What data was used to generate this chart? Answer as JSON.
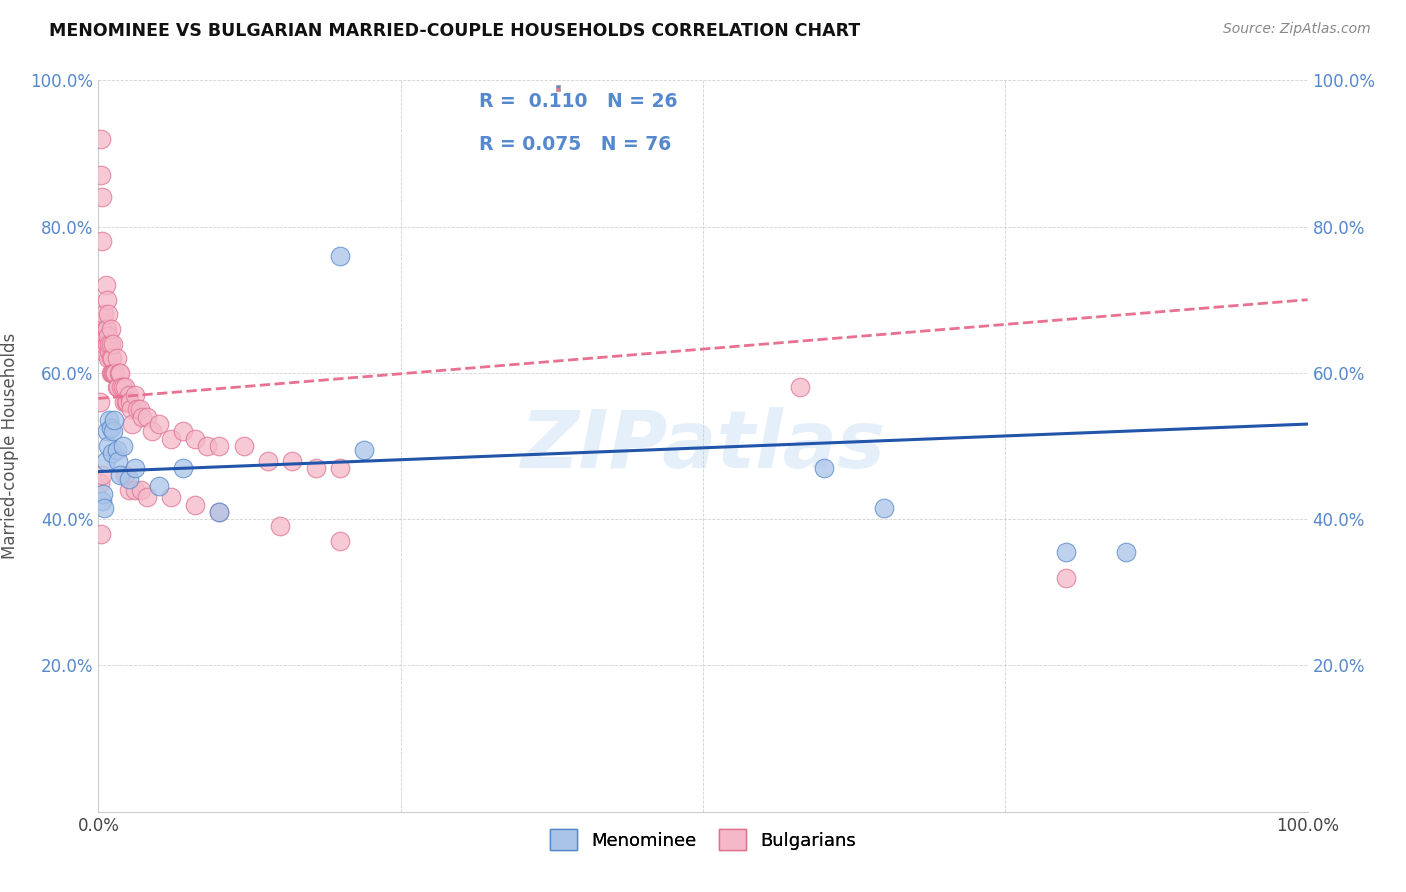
{
  "title": "MENOMINEE VS BULGARIAN MARRIED-COUPLE HOUSEHOLDS CORRELATION CHART",
  "source": "Source: ZipAtlas.com",
  "ylabel": "Married-couple Households",
  "xlim": [
    0,
    1
  ],
  "ylim": [
    0,
    1
  ],
  "xticks": [
    0,
    0.25,
    0.5,
    0.75,
    1.0
  ],
  "yticks": [
    0.0,
    0.2,
    0.4,
    0.6,
    0.8,
    1.0
  ],
  "xticklabels": [
    "0.0%",
    "",
    "",
    "",
    "100.0%"
  ],
  "yticklabels": [
    "",
    "20.0%",
    "40.0%",
    "60.0%",
    "80.0%",
    "100.0%"
  ],
  "menominee_color": "#aac4e8",
  "bulgarian_color": "#f4b8c8",
  "menominee_edge_color": "#5588cc",
  "bulgarian_edge_color": "#e07090",
  "menominee_line_color": "#2255aa",
  "bulgarian_line_color": "#e87090",
  "tick_color": "#5588cc",
  "watermark": "ZIPatlas",
  "background_color": "#ffffff",
  "menominee_x": [
    0.003,
    0.004,
    0.005,
    0.006,
    0.007,
    0.008,
    0.009,
    0.01,
    0.011,
    0.012,
    0.013,
    0.015,
    0.016,
    0.018,
    0.02,
    0.025,
    0.03,
    0.05,
    0.07,
    0.2,
    0.22,
    0.6,
    0.65,
    0.8,
    0.85,
    0.1
  ],
  "menominee_y": [
    0.425,
    0.435,
    0.415,
    0.48,
    0.52,
    0.5,
    0.535,
    0.525,
    0.49,
    0.52,
    0.535,
    0.495,
    0.48,
    0.46,
    0.5,
    0.455,
    0.47,
    0.445,
    0.47,
    0.76,
    0.495,
    0.47,
    0.415,
    0.355,
    0.355,
    0.41
  ],
  "bulgarian_x": [
    0.001,
    0.002,
    0.002,
    0.003,
    0.003,
    0.004,
    0.004,
    0.005,
    0.005,
    0.006,
    0.006,
    0.006,
    0.007,
    0.007,
    0.007,
    0.008,
    0.008,
    0.008,
    0.009,
    0.009,
    0.01,
    0.01,
    0.01,
    0.01,
    0.011,
    0.011,
    0.012,
    0.012,
    0.013,
    0.014,
    0.015,
    0.015,
    0.016,
    0.017,
    0.018,
    0.019,
    0.02,
    0.021,
    0.022,
    0.023,
    0.024,
    0.025,
    0.026,
    0.027,
    0.028,
    0.03,
    0.032,
    0.034,
    0.036,
    0.04,
    0.044,
    0.05,
    0.06,
    0.07,
    0.08,
    0.09,
    0.1,
    0.12,
    0.14,
    0.16,
    0.18,
    0.2,
    0.022,
    0.025,
    0.03,
    0.035,
    0.04,
    0.06,
    0.08,
    0.1,
    0.15,
    0.2,
    0.58,
    0.8,
    0.001,
    0.002,
    0.003
  ],
  "bulgarian_y": [
    0.56,
    0.87,
    0.92,
    0.84,
    0.78,
    0.63,
    0.67,
    0.68,
    0.64,
    0.65,
    0.66,
    0.72,
    0.64,
    0.66,
    0.7,
    0.62,
    0.65,
    0.68,
    0.63,
    0.64,
    0.6,
    0.62,
    0.64,
    0.66,
    0.6,
    0.62,
    0.6,
    0.64,
    0.6,
    0.6,
    0.62,
    0.58,
    0.58,
    0.6,
    0.6,
    0.58,
    0.58,
    0.56,
    0.58,
    0.56,
    0.56,
    0.57,
    0.56,
    0.55,
    0.53,
    0.57,
    0.55,
    0.55,
    0.54,
    0.54,
    0.52,
    0.53,
    0.51,
    0.52,
    0.51,
    0.5,
    0.5,
    0.5,
    0.48,
    0.48,
    0.47,
    0.47,
    0.46,
    0.44,
    0.44,
    0.44,
    0.43,
    0.43,
    0.42,
    0.41,
    0.39,
    0.37,
    0.58,
    0.32,
    0.45,
    0.38,
    0.46
  ]
}
